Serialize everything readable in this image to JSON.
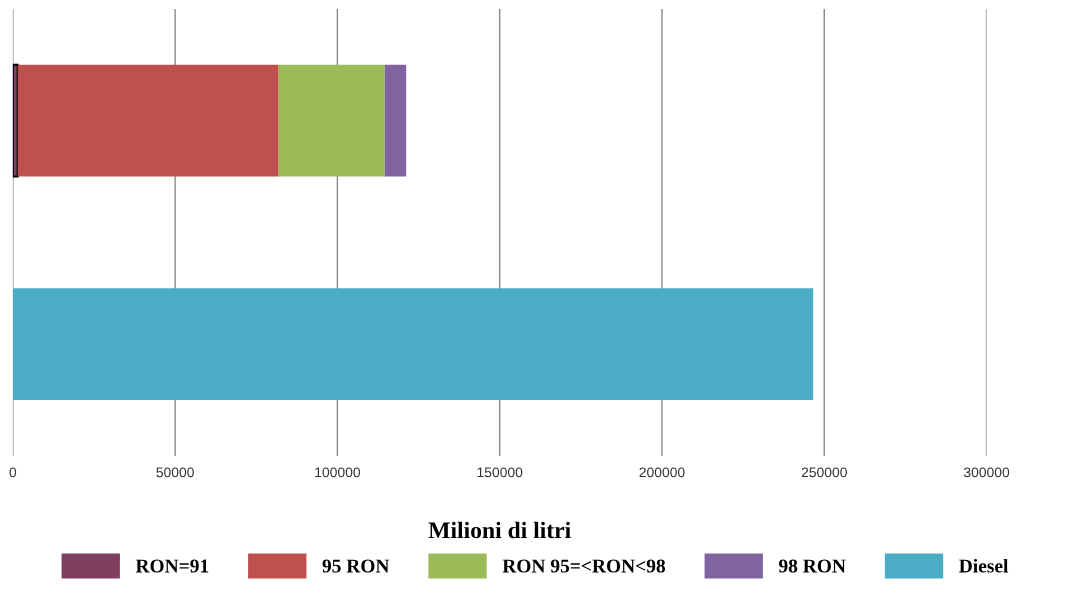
{
  "chart_data": {
    "type": "bar",
    "orientation": "horizontal",
    "stacked": true,
    "xlabel": "Milioni di litri",
    "categories": [
      null,
      null
    ],
    "series": [
      {
        "name": "RON=91",
        "color": "#7f3f60",
        "values": [
          1500,
          null
        ]
      },
      {
        "name": "95 RON",
        "color": "#c0504d",
        "values": [
          80400,
          null
        ]
      },
      {
        "name": "RON 95=<RON<98",
        "color": "#9bbb59",
        "values": [
          32700,
          null
        ]
      },
      {
        "name": "98 RON",
        "color": "#8064a2",
        "values": [
          6600,
          null
        ]
      },
      {
        "name": "Diesel",
        "color": "#4bacc6",
        "values": [
          null,
          246600
        ]
      }
    ],
    "xlim": [
      0,
      300000
    ],
    "xticks": [
      0,
      50000,
      100000,
      150000,
      200000,
      250000,
      300000
    ],
    "grid": "x",
    "legend": "bottom"
  }
}
